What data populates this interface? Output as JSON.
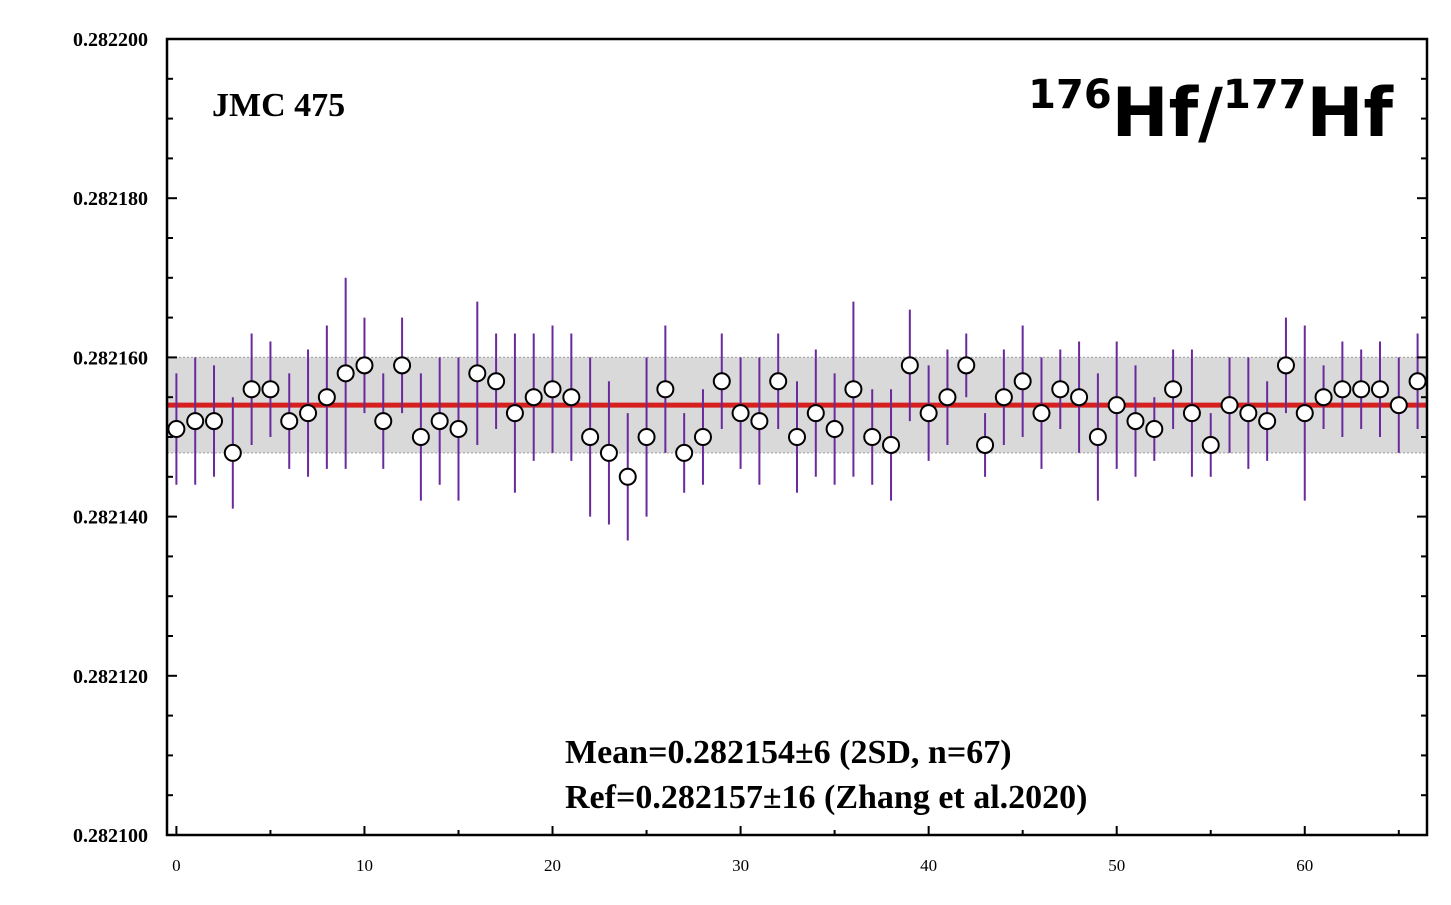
{
  "chart_data": {
    "type": "scatter",
    "title": "",
    "xlabel": "",
    "ylabel": "",
    "xlim": [
      -0.5,
      66.5
    ],
    "ylim": [
      0.2821,
      0.2822
    ],
    "x_ticks": [
      "0",
      "10",
      "20",
      "30",
      "40",
      "50",
      "60"
    ],
    "x_tick_values": [
      0,
      10,
      20,
      30,
      40,
      50,
      60
    ],
    "y_ticks": [
      "0.282100",
      "0.282120",
      "0.282140",
      "0.282160",
      "0.282180",
      "0.282200"
    ],
    "y_tick_values": [
      0.2821,
      0.28212,
      0.28214,
      0.28216,
      0.28218,
      0.2822
    ],
    "grid": false,
    "sample_label": "JMC 475",
    "ratio_label": {
      "num_mass": "176",
      "num_element": "Hf",
      "separator": "/",
      "den_mass": "177",
      "den_element": "Hf"
    },
    "mean_line": {
      "value": 0.282154,
      "color": "#d62020"
    },
    "band": {
      "low": 0.282148,
      "high": 0.28216,
      "color": "#d9d9d9"
    },
    "stats_text": [
      "Mean=0.282154±6 (2SD, n=67)",
      "Ref=0.282157±16 (Zhang et al.2020)"
    ],
    "marker_color": "#000000",
    "errorbar_color": "#6a2a9c",
    "series": [
      {
        "x": [
          0,
          1,
          2,
          3,
          4,
          5,
          6,
          7,
          8,
          9,
          10,
          11,
          12,
          13,
          14,
          15,
          16,
          17,
          18,
          19,
          20,
          21,
          22,
          23,
          24,
          25,
          26,
          27,
          28,
          29,
          30,
          31,
          32,
          33,
          34,
          35,
          36,
          37,
          38,
          39,
          40,
          41,
          42,
          43,
          44,
          45,
          46,
          47,
          48,
          49,
          50,
          51,
          52,
          53,
          54,
          55,
          56,
          57,
          58,
          59,
          60,
          61,
          62,
          63,
          64,
          65,
          66
        ],
        "y": [
          0.282151,
          0.282152,
          0.282152,
          0.282148,
          0.282156,
          0.282156,
          0.282152,
          0.282153,
          0.282155,
          0.282158,
          0.282159,
          0.282152,
          0.282159,
          0.28215,
          0.282152,
          0.282151,
          0.282158,
          0.282157,
          0.282153,
          0.282155,
          0.282156,
          0.282155,
          0.28215,
          0.282148,
          0.282145,
          0.28215,
          0.282156,
          0.282148,
          0.28215,
          0.282157,
          0.282153,
          0.282152,
          0.282157,
          0.28215,
          0.282153,
          0.282151,
          0.282156,
          0.28215,
          0.282149,
          0.282159,
          0.282153,
          0.282155,
          0.282159,
          0.282149,
          0.282155,
          0.282157,
          0.282153,
          0.282156,
          0.282155,
          0.28215,
          0.282154,
          0.282152,
          0.282151,
          0.282156,
          0.282153,
          0.282149,
          0.282154,
          0.282153,
          0.282152,
          0.282159,
          0.282153,
          0.282155,
          0.282156,
          0.282156,
          0.282156,
          0.282154,
          0.282157
        ],
        "err": [
          7e-06,
          8e-06,
          7e-06,
          7e-06,
          7e-06,
          6e-06,
          6e-06,
          8e-06,
          9e-06,
          1.2e-05,
          6e-06,
          6e-06,
          6e-06,
          8e-06,
          8e-06,
          9e-06,
          9e-06,
          6e-06,
          1e-05,
          8e-06,
          8e-06,
          8e-06,
          1e-05,
          9e-06,
          8e-06,
          1e-05,
          8e-06,
          5e-06,
          6e-06,
          6e-06,
          7e-06,
          8e-06,
          6e-06,
          7e-06,
          8e-06,
          7e-06,
          1.1e-05,
          6e-06,
          7e-06,
          7e-06,
          6e-06,
          6e-06,
          4e-06,
          4e-06,
          6e-06,
          7e-06,
          7e-06,
          5e-06,
          7e-06,
          8e-06,
          8e-06,
          7e-06,
          4e-06,
          5e-06,
          8e-06,
          4e-06,
          6e-06,
          7e-06,
          5e-06,
          6e-06,
          1.1e-05,
          4e-06,
          6e-06,
          5e-06,
          6e-06,
          6e-06,
          6e-06
        ]
      }
    ]
  }
}
